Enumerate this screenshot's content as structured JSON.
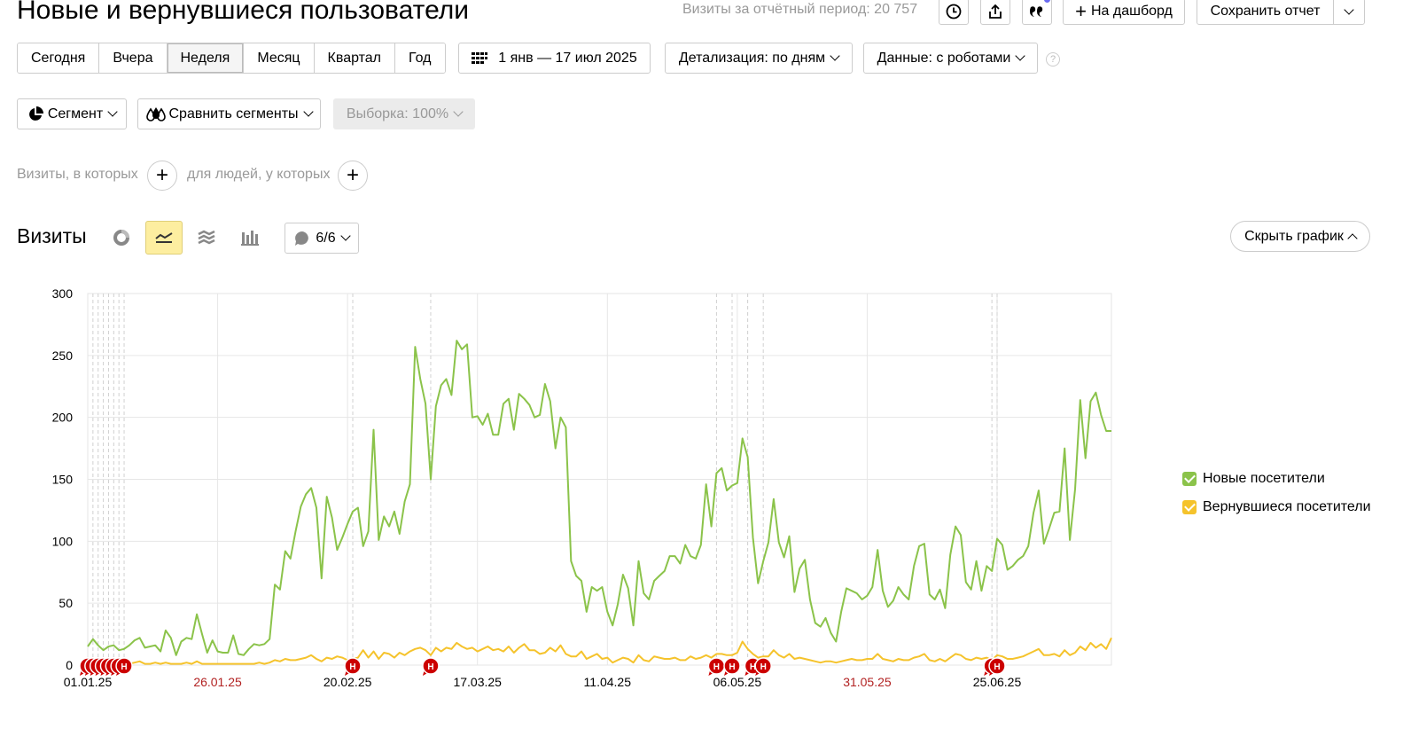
{
  "header": {
    "title": "Новые и вернувшиеся пользователи",
    "visits_total": "Визиты за отчётный период: 20 757",
    "to_dashboard": "На дашборд",
    "save_report": "Сохранить отчет",
    "icons": [
      "history-icon",
      "share-icon",
      "quote-icon",
      "chevron-down-icon"
    ]
  },
  "period": {
    "tabs": [
      "Сегодня",
      "Вчера",
      "Неделя",
      "Месяц",
      "Квартал",
      "Год"
    ],
    "active_tab": "Неделя",
    "date_range": "1 янв — 17 июл 2025",
    "detail": "Детализация: по дням",
    "data": "Данные: с роботами",
    "help": "?"
  },
  "segments": {
    "segment": "Сегмент",
    "compare": "Сравнить сегменты",
    "sample": "Выборка: 100%"
  },
  "filters": {
    "visits_where": "Визиты, в которых",
    "people_where": "для людей, у которых"
  },
  "chart_section": {
    "title": "Визиты",
    "annotations": "6/6",
    "hide_chart": "Скрыть график"
  },
  "chart_data": {
    "type": "line",
    "title": "",
    "xlabel": "",
    "ylabel": "",
    "ylim": [
      0,
      300
    ],
    "yticks": [
      0,
      50,
      100,
      150,
      200,
      250,
      300
    ],
    "x_start": "2025-01-01",
    "x_end": "2025-07-17",
    "xtick_labels": [
      {
        "label": "01.01.25",
        "holiday": false
      },
      {
        "label": "26.01.25",
        "holiday": true
      },
      {
        "label": "20.02.25",
        "holiday": false
      },
      {
        "label": "17.03.25",
        "holiday": false
      },
      {
        "label": "11.04.25",
        "holiday": false
      },
      {
        "label": "06.05.25",
        "holiday": false
      },
      {
        "label": "31.05.25",
        "holiday": true
      },
      {
        "label": "25.06.25",
        "holiday": false
      }
    ],
    "grid": true,
    "legend_position": "right",
    "series": [
      {
        "name": "Новые посетители",
        "color": "#8bc34a",
        "values": [
          15,
          21,
          16,
          12,
          15,
          16,
          12,
          13,
          16,
          20,
          22,
          14,
          15,
          16,
          11,
          28,
          22,
          8,
          19,
          22,
          21,
          41,
          25,
          10,
          20,
          11,
          10,
          10,
          24,
          9,
          8,
          13,
          17,
          16,
          17,
          21,
          65,
          61,
          92,
          86,
          108,
          128,
          138,
          143,
          127,
          70,
          136,
          119,
          93,
          103,
          114,
          124,
          127,
          96,
          108,
          190,
          101,
          120,
          112,
          124,
          106,
          132,
          146,
          257,
          231,
          211,
          150,
          209,
          226,
          231,
          218,
          262,
          255,
          259,
          200,
          201,
          194,
          203,
          186,
          186,
          211,
          215,
          190,
          219,
          215,
          210,
          200,
          202,
          227,
          213,
          175,
          200,
          192,
          84,
          72,
          68,
          43,
          63,
          60,
          63,
          43,
          32,
          49,
          73,
          62,
          32,
          84,
          58,
          53,
          68,
          72,
          76,
          88,
          88,
          82,
          97,
          88,
          86,
          97,
          146,
          112,
          155,
          159,
          141,
          145,
          147,
          183,
          168,
          103,
          66,
          84,
          99,
          134,
          99,
          87,
          104,
          59,
          78,
          85,
          53,
          34,
          31,
          38,
          26,
          19,
          43,
          62,
          60,
          58,
          53,
          56,
          63,
          93,
          60,
          47,
          52,
          63,
          57,
          53,
          80,
          96,
          98,
          57,
          53,
          61,
          46,
          89,
          112,
          105,
          67,
          61,
          84,
          60,
          80,
          76,
          102,
          97,
          77,
          80,
          85,
          88,
          96,
          123,
          141,
          98,
          110,
          123,
          124,
          175,
          101,
          142,
          214,
          167,
          213,
          220,
          202,
          189,
          189
        ],
        "note": "daily visits, read from chart"
      },
      {
        "name": "Вернувшиеся посетители",
        "color": "#f5c32c",
        "values": [
          2,
          3,
          2,
          1,
          1,
          2,
          1,
          1,
          1,
          2,
          3,
          1,
          1,
          2,
          1,
          2,
          1,
          1,
          1,
          2,
          1,
          3,
          1,
          1,
          1,
          1,
          1,
          1,
          1,
          1,
          1,
          1,
          1,
          2,
          1,
          2,
          4,
          3,
          5,
          4,
          4,
          5,
          6,
          8,
          5,
          3,
          6,
          5,
          7,
          6,
          4,
          5,
          6,
          12,
          6,
          11,
          5,
          10,
          9,
          6,
          10,
          8,
          11,
          13,
          14,
          12,
          8,
          14,
          11,
          14,
          13,
          18,
          15,
          13,
          14,
          11,
          13,
          15,
          12,
          13,
          11,
          15,
          10,
          14,
          17,
          12,
          12,
          9,
          10,
          14,
          11,
          16,
          9,
          7,
          7,
          11,
          5,
          7,
          9,
          5,
          6,
          2,
          4,
          6,
          5,
          2,
          8,
          4,
          3,
          7,
          6,
          5,
          5,
          6,
          4,
          4,
          7,
          5,
          6,
          8,
          6,
          9,
          9,
          8,
          8,
          10,
          19,
          13,
          9,
          6,
          7,
          7,
          12,
          8,
          6,
          9,
          5,
          6,
          5,
          4,
          3,
          2,
          3,
          3,
          2,
          3,
          4,
          5,
          4,
          4,
          5,
          5,
          9,
          5,
          4,
          3,
          5,
          4,
          4,
          6,
          7,
          9,
          4,
          3,
          5,
          3,
          6,
          9,
          8,
          5,
          4,
          6,
          5,
          6,
          4,
          8,
          7,
          5,
          5,
          6,
          7,
          9,
          11,
          13,
          8,
          8,
          9,
          7,
          12,
          8,
          10,
          15,
          12,
          18,
          14,
          17,
          13,
          22
        ]
      }
    ],
    "annotation_markers": [
      {
        "label": "Н",
        "count": 8,
        "position": "jan-start"
      },
      {
        "label": "Н",
        "count": 1,
        "position": "feb-end"
      },
      {
        "label": "Н",
        "count": 1,
        "position": "mar-start"
      },
      {
        "label": "Н",
        "count": 2,
        "position": "may-start"
      },
      {
        "label": "Н",
        "count": 2,
        "position": "may-mid"
      },
      {
        "label": "Н",
        "count": 2,
        "position": "jun-mid"
      }
    ]
  }
}
